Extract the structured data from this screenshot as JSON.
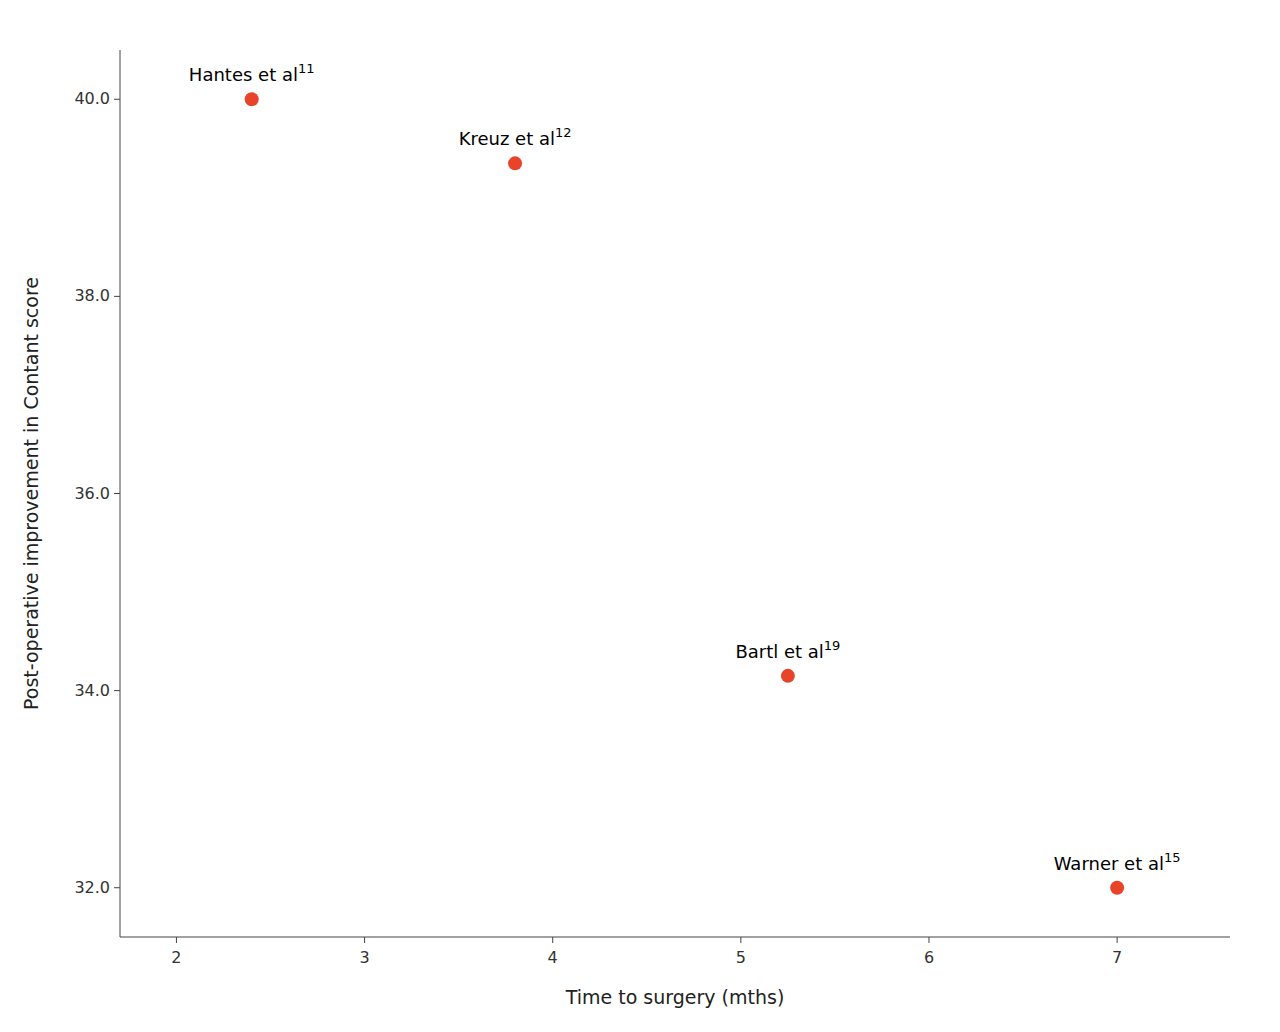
{
  "chart_data": {
    "type": "scatter",
    "x": [
      2.4,
      3.8,
      5.25,
      7.0
    ],
    "values": [
      40.0,
      39.35,
      34.15,
      32.0
    ],
    "color": "#E8442A",
    "xlabel": "Time to surgery (mths)",
    "ylabel": "Post-operative improvement in Contant score",
    "xlim": [
      1.7,
      7.6
    ],
    "ylim": [
      31.5,
      40.5
    ],
    "xticks": [
      2,
      3,
      4,
      5,
      6,
      7
    ],
    "yticks": [
      {
        "value": 32.0,
        "label": "32.0"
      },
      {
        "value": 34.0,
        "label": "34.0"
      },
      {
        "value": 36.0,
        "label": "36.0"
      },
      {
        "value": 38.0,
        "label": "38.0"
      },
      {
        "value": 40.0,
        "label": "40.0"
      }
    ],
    "grid": false,
    "annotations": [
      {
        "text": "Hantes et al",
        "superscript": "11"
      },
      {
        "text": "Kreuz et al",
        "superscript": "12"
      },
      {
        "text": "Bartl et al",
        "superscript": "19"
      },
      {
        "text": "Warner et al",
        "superscript": "15"
      }
    ]
  }
}
